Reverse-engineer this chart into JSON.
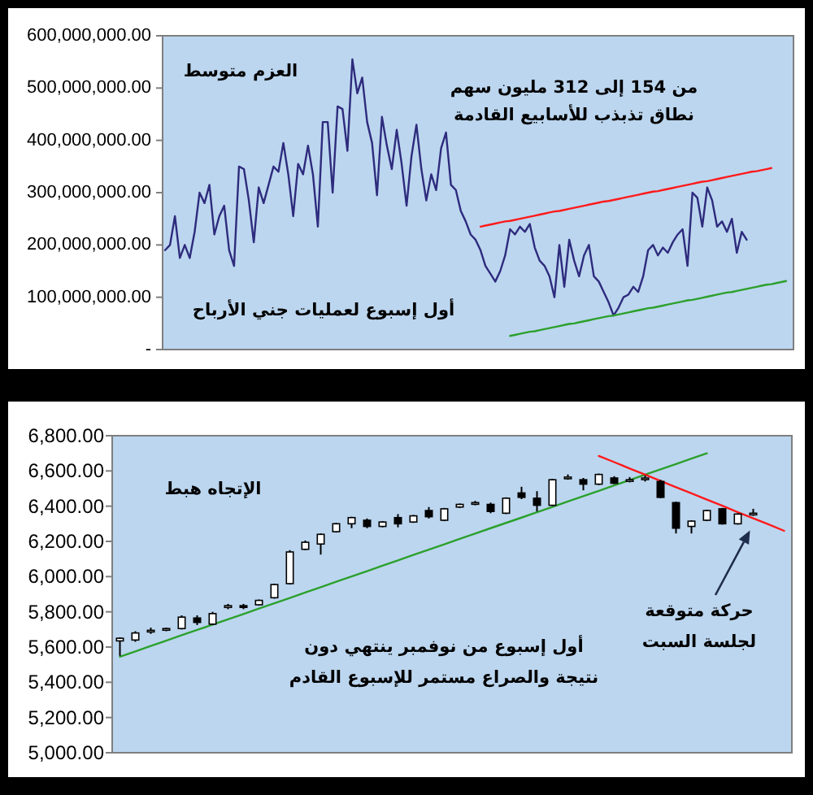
{
  "chart_data": [
    {
      "type": "line",
      "annotations": [
        "العزم متوسط",
        "من 154 إلى 312 مليون سهم\nنطاق تذبذب للأسابيع القادمة",
        "أول إسبوع لعمليات جني الأرباح"
      ],
      "categories": [
        null,
        null,
        null,
        null,
        null,
        null,
        null,
        null,
        null,
        null,
        null,
        null,
        null,
        null,
        null,
        null,
        null,
        null,
        null,
        null,
        null,
        null,
        null,
        null,
        null,
        null,
        null,
        null,
        null,
        null,
        null,
        null,
        null,
        null,
        null,
        null,
        null,
        null,
        null,
        null,
        null,
        null,
        null,
        null,
        null,
        null,
        null,
        null,
        null,
        null,
        null,
        null,
        null,
        null,
        null,
        null,
        null,
        null,
        null,
        null,
        null,
        null,
        null,
        null,
        null,
        null,
        null,
        null,
        null,
        null,
        null,
        null,
        null,
        null,
        null,
        null,
        null,
        null,
        null,
        null,
        null,
        null,
        null,
        null,
        null,
        null,
        null,
        null,
        null,
        null,
        null,
        null,
        null,
        null,
        null,
        null,
        null,
        null,
        null,
        null,
        null,
        null,
        null,
        null,
        null,
        null,
        null,
        null,
        null,
        null,
        null,
        null,
        null,
        null,
        null,
        null,
        null,
        null,
        null,
        null,
        null,
        null,
        null,
        null,
        null,
        null,
        null,
        null
      ],
      "series": [
        {
          "color": "#2e2b7d",
          "values": [
            190000000,
            200000000,
            255000000,
            175000000,
            200000000,
            175000000,
            225000000,
            300000000,
            280000000,
            315000000,
            220000000,
            255000000,
            275000000,
            190000000,
            160000000,
            350000000,
            345000000,
            285000000,
            205000000,
            310000000,
            280000000,
            315000000,
            350000000,
            340000000,
            395000000,
            335000000,
            255000000,
            355000000,
            335000000,
            390000000,
            335000000,
            235000000,
            435000000,
            435000000,
            300000000,
            465000000,
            460000000,
            380000000,
            555000000,
            490000000,
            520000000,
            435000000,
            395000000,
            295000000,
            445000000,
            390000000,
            345000000,
            420000000,
            355000000,
            275000000,
            370000000,
            430000000,
            345000000,
            285000000,
            335000000,
            305000000,
            385000000,
            415000000,
            315000000,
            305000000,
            265000000,
            245000000,
            220000000,
            210000000,
            190000000,
            160000000,
            145000000,
            130000000,
            150000000,
            180000000,
            230000000,
            220000000,
            235000000,
            225000000,
            240000000,
            195000000,
            170000000,
            160000000,
            140000000,
            100000000,
            200000000,
            120000000,
            210000000,
            170000000,
            140000000,
            180000000,
            200000000,
            140000000,
            130000000,
            110000000,
            90000000,
            65000000,
            80000000,
            100000000,
            105000000,
            120000000,
            110000000,
            140000000,
            190000000,
            200000000,
            180000000,
            195000000,
            185000000,
            205000000,
            220000000,
            230000000,
            160000000,
            300000000,
            290000000,
            235000000,
            310000000,
            285000000,
            235000000,
            245000000,
            225000000,
            250000000,
            185000000,
            225000000,
            210000000,
            null,
            null,
            null,
            null,
            null,
            null,
            null,
            null,
            null
          ]
        },
        {
          "type": "line",
          "color": "#ff1a1a",
          "values": [
            null,
            null,
            null,
            null,
            null,
            null,
            null,
            null,
            null,
            null,
            null,
            null,
            null,
            null,
            null,
            null,
            null,
            null,
            null,
            null,
            null,
            null,
            null,
            null,
            null,
            null,
            null,
            null,
            null,
            null,
            null,
            null,
            null,
            null,
            null,
            null,
            null,
            null,
            null,
            null,
            null,
            null,
            null,
            null,
            null,
            null,
            null,
            null,
            null,
            null,
            null,
            null,
            null,
            null,
            null,
            null,
            null,
            null,
            null,
            null,
            null,
            null,
            null,
            null,
            235000000,
            237000000,
            239000000,
            241000000,
            243000000,
            245000000,
            246000000,
            248000000,
            250000000,
            252000000,
            254000000,
            256000000,
            258000000,
            260000000,
            262000000,
            264000000,
            265000000,
            267000000,
            269000000,
            271000000,
            273000000,
            275000000,
            277000000,
            279000000,
            281000000,
            283000000,
            284000000,
            286000000,
            288000000,
            290000000,
            292000000,
            294000000,
            296000000,
            298000000,
            300000000,
            302000000,
            303000000,
            305000000,
            307000000,
            309000000,
            311000000,
            313000000,
            315000000,
            317000000,
            319000000,
            321000000,
            322000000,
            324000000,
            326000000,
            328000000,
            330000000,
            332000000,
            334000000,
            336000000,
            338000000,
            340000000,
            341000000,
            343000000,
            345000000,
            347000000,
            null,
            null,
            null,
            null
          ]
        },
        {
          "type": "line",
          "color": "#2ca02c",
          "values": [
            null,
            null,
            null,
            null,
            null,
            null,
            null,
            null,
            null,
            null,
            null,
            null,
            null,
            null,
            null,
            null,
            null,
            null,
            null,
            null,
            null,
            null,
            null,
            null,
            null,
            null,
            null,
            null,
            null,
            null,
            null,
            null,
            null,
            null,
            null,
            null,
            null,
            null,
            null,
            null,
            null,
            null,
            null,
            null,
            null,
            null,
            null,
            null,
            null,
            null,
            null,
            null,
            null,
            null,
            null,
            null,
            null,
            null,
            null,
            null,
            null,
            null,
            null,
            null,
            null,
            null,
            null,
            null,
            null,
            null,
            26000000,
            28000000,
            30000000,
            32000000,
            34000000,
            35000000,
            37000000,
            39000000,
            41000000,
            43000000,
            45000000,
            47000000,
            49000000,
            50000000,
            52000000,
            54000000,
            56000000,
            58000000,
            60000000,
            62000000,
            64000000,
            65000000,
            67000000,
            69000000,
            71000000,
            73000000,
            75000000,
            77000000,
            79000000,
            80000000,
            82000000,
            84000000,
            86000000,
            88000000,
            90000000,
            92000000,
            94000000,
            95000000,
            97000000,
            99000000,
            101000000,
            103000000,
            105000000,
            107000000,
            109000000,
            110000000,
            112000000,
            114000000,
            116000000,
            118000000,
            120000000,
            122000000,
            124000000,
            125000000,
            127000000,
            129000000,
            131000000,
            null
          ]
        }
      ],
      "ylim": [
        0,
        600000000
      ],
      "yticks": [
        {
          "value": 0,
          "label": "-"
        },
        {
          "value": 100000000,
          "label": "100,000,000.00"
        },
        {
          "value": 200000000,
          "label": "200,000,000.00"
        },
        {
          "value": 300000000,
          "label": "300,000,000.00"
        },
        {
          "value": 400000000,
          "label": "400,000,000.00"
        },
        {
          "value": 500000000,
          "label": "500,000,000.00"
        },
        {
          "value": 600000000,
          "label": "600,000,000.00"
        }
      ],
      "tick_labels": "y"
    },
    {
      "type": "candlestick",
      "annotations": [
        "الإتجاه هبط",
        "أول إسبوع من نوفمبر ينتهي دون\nنتيجة والصراع مستمر للإسبوع القادم",
        "حركة متوقعة\nلجلسة السبت"
      ],
      "categories": [
        null,
        null,
        null,
        null,
        null,
        null,
        null,
        null,
        null,
        null,
        null,
        null,
        null,
        null,
        null,
        null,
        null,
        null,
        null,
        null,
        null,
        null,
        null,
        null,
        null,
        null,
        null,
        null,
        null,
        null,
        null,
        null,
        null,
        null,
        null,
        null,
        null,
        null,
        null,
        null,
        null,
        null,
        null,
        null
      ],
      "ohlc": [
        [
          5635,
          5655,
          5550,
          5650
        ],
        [
          5640,
          5690,
          5630,
          5680
        ],
        [
          5690,
          5710,
          5675,
          5695
        ],
        [
          5700,
          5710,
          5690,
          5705
        ],
        [
          5705,
          5780,
          5700,
          5770
        ],
        [
          5765,
          5780,
          5725,
          5740
        ],
        [
          5730,
          5800,
          5725,
          5790
        ],
        [
          5825,
          5845,
          5815,
          5835
        ],
        [
          5835,
          5845,
          5815,
          5825
        ],
        [
          5840,
          5870,
          5835,
          5865
        ],
        [
          5880,
          5960,
          5875,
          5955
        ],
        [
          5960,
          6150,
          5955,
          6140
        ],
        [
          6155,
          6205,
          6150,
          6195
        ],
        [
          6185,
          6245,
          6125,
          6240
        ],
        [
          6255,
          6305,
          6250,
          6300
        ],
        [
          6300,
          6340,
          6275,
          6335
        ],
        [
          6320,
          6330,
          6275,
          6285
        ],
        [
          6285,
          6315,
          6280,
          6310
        ],
        [
          6335,
          6355,
          6280,
          6300
        ],
        [
          6310,
          6350,
          6305,
          6345
        ],
        [
          6375,
          6395,
          6330,
          6340
        ],
        [
          6320,
          6390,
          6315,
          6385
        ],
        [
          6395,
          6415,
          6390,
          6410
        ],
        [
          6415,
          6430,
          6405,
          6420
        ],
        [
          6410,
          6420,
          6360,
          6370
        ],
        [
          6360,
          6450,
          6355,
          6445
        ],
        [
          6475,
          6510,
          6440,
          6450
        ],
        [
          6445,
          6485,
          6370,
          6405
        ],
        [
          6405,
          6555,
          6400,
          6550
        ],
        [
          6560,
          6580,
          6550,
          6565
        ],
        [
          6550,
          6560,
          6490,
          6525
        ],
        [
          6525,
          6585,
          6520,
          6580
        ],
        [
          6560,
          6570,
          6525,
          6530
        ],
        [
          6545,
          6565,
          6535,
          6550
        ],
        [
          6555,
          6575,
          6540,
          6560
        ],
        [
          6540,
          6550,
          6445,
          6450
        ],
        [
          6420,
          6425,
          6245,
          6275
        ],
        [
          6285,
          6320,
          6245,
          6315
        ],
        [
          6320,
          6380,
          6315,
          6375
        ],
        [
          6385,
          6390,
          6295,
          6300
        ],
        [
          6300,
          6360,
          6295,
          6355
        ],
        [
          6355,
          6385,
          6345,
          6360
        ],
        null,
        null
      ],
      "series": [
        {
          "type": "line",
          "color": "#2ca02c",
          "values": [
            5545,
            5575,
            5606,
            5636,
            5667,
            5697,
            5727,
            5758,
            5788,
            5819,
            5849,
            5879,
            5910,
            5940,
            5971,
            6001,
            6031,
            6062,
            6092,
            6123,
            6153,
            6183,
            6214,
            6244,
            6275,
            6305,
            6335,
            6366,
            6396,
            6427,
            6457,
            6487,
            6518,
            6548,
            6579,
            6609,
            6639,
            6670,
            6700,
            null,
            null,
            null,
            null,
            null
          ]
        },
        {
          "type": "line",
          "color": "#ff1a1a",
          "values": [
            null,
            null,
            null,
            null,
            null,
            null,
            null,
            null,
            null,
            null,
            null,
            null,
            null,
            null,
            null,
            null,
            null,
            null,
            null,
            null,
            null,
            null,
            null,
            null,
            null,
            null,
            null,
            null,
            null,
            null,
            null,
            6685,
            6650,
            6614,
            6579,
            6543,
            6508,
            6473,
            6437,
            6402,
            6366,
            6331,
            6296,
            6260
          ]
        }
      ],
      "ylim": [
        5000,
        6800
      ],
      "yticks": [
        {
          "value": 5000,
          "label": "5,000.00"
        },
        {
          "value": 5200,
          "label": "5,200.00"
        },
        {
          "value": 5400,
          "label": "5,400.00"
        },
        {
          "value": 5600,
          "label": "5,600.00"
        },
        {
          "value": 5800,
          "label": "5,800.00"
        },
        {
          "value": 6000,
          "label": "6,000.00"
        },
        {
          "value": 6200,
          "label": "6,200.00"
        },
        {
          "value": 6400,
          "label": "6,400.00"
        },
        {
          "value": 6600,
          "label": "6,600.00"
        },
        {
          "value": 6800,
          "label": "6,800.00"
        }
      ],
      "tick_labels": "y"
    }
  ]
}
